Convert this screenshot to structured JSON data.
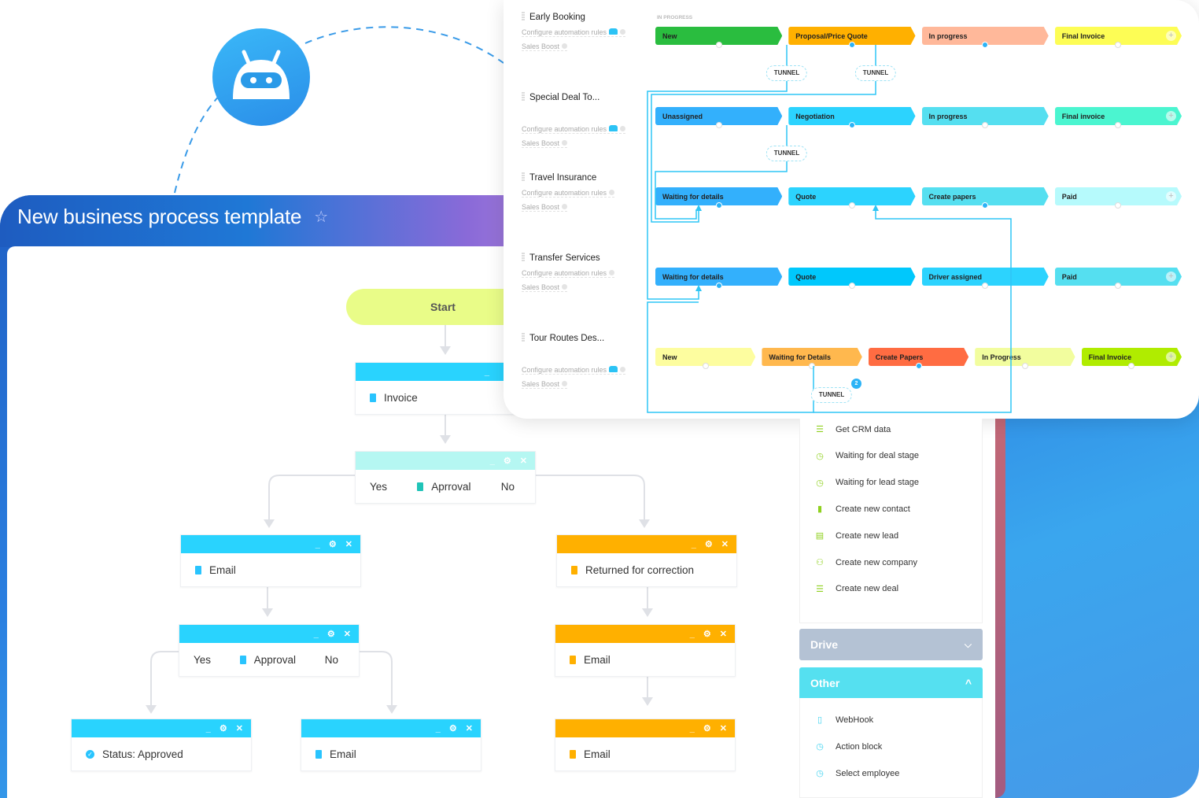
{
  "flow": {
    "title": "New business process template",
    "star_icon": "star-outline-icon",
    "start_label": "Start",
    "nodes": {
      "invoice": {
        "label": "Invoice",
        "color": "#29d3fe"
      },
      "approval1": {
        "yes": "Yes",
        "label": "Aprroval",
        "no": "No",
        "color": "#b5f7f2"
      },
      "email_left": {
        "label": "Email",
        "color": "#29d3fe"
      },
      "returned": {
        "label": "Returned for correction",
        "color": "#ffb000"
      },
      "approval2": {
        "yes": "Yes",
        "label": "Approval",
        "no": "No",
        "color": "#29d3fe"
      },
      "email_orange1": {
        "label": "Email",
        "color": "#ffb000"
      },
      "status": {
        "label": "Status: Approved",
        "color": "#29d3fe"
      },
      "email_mid": {
        "label": "Email",
        "color": "#29d3fe"
      },
      "email_orange2": {
        "label": "Email",
        "color": "#ffb000"
      }
    }
  },
  "pipelines": {
    "column_header": "IN PROGRESS",
    "automation_label": "Configure automation rules",
    "boost_label": "Sales Boost",
    "tunnel_label": "TUNNEL",
    "tunnel_badge": "2",
    "rows": [
      {
        "name": "Early Booking",
        "robot": true,
        "stages": [
          {
            "label": "New",
            "color": "#2abd3f",
            "active": false
          },
          {
            "label": "Proposal/Price Quote",
            "color": "#ffb000",
            "active": true
          },
          {
            "label": "In progress",
            "color": "#ffb89a",
            "active": true
          },
          {
            "label": "Final Invoice",
            "color": "#fdfd55",
            "active": false
          }
        ]
      },
      {
        "name": "Special Deal To...",
        "robot": true,
        "stages": [
          {
            "label": "Unassigned",
            "color": "#33b0fc",
            "active": false
          },
          {
            "label": "Negotiation",
            "color": "#2cd3fe",
            "active": true
          },
          {
            "label": "In progress",
            "color": "#55dff0",
            "active": false
          },
          {
            "label": "Final invoice",
            "color": "#4bf5d0",
            "active": false
          }
        ]
      },
      {
        "name": "Travel Insurance",
        "robot": false,
        "stages": [
          {
            "label": "Waiting for details",
            "color": "#33b0fc",
            "active": true
          },
          {
            "label": "Quote",
            "color": "#2cd3fe",
            "active": false
          },
          {
            "label": "Create papers",
            "color": "#55dff0",
            "active": true
          },
          {
            "label": "Paid",
            "color": "#b6fafc",
            "active": false
          }
        ]
      },
      {
        "name": "Transfer Services",
        "robot": false,
        "stages": [
          {
            "label": "Waiting for details",
            "color": "#33b0fc",
            "active": true
          },
          {
            "label": "Quote",
            "color": "#00c8fc",
            "active": false
          },
          {
            "label": "Driver assigned",
            "color": "#2cd3fe",
            "active": false
          },
          {
            "label": "Paid",
            "color": "#55dff0",
            "active": false
          }
        ]
      },
      {
        "name": "Tour Routes Des...",
        "robot": true,
        "stages": [
          {
            "label": "New",
            "color": "#fdfd9f",
            "active": false
          },
          {
            "label": "Waiting for Details",
            "color": "#ffb84e",
            "active": false
          },
          {
            "label": "Create Papers",
            "color": "#ff6c42",
            "active": true
          },
          {
            "label": "In Progress",
            "color": "#f2fd9e",
            "active": false
          },
          {
            "label": "Final Invoice",
            "color": "#b0ec00",
            "active": false
          }
        ]
      }
    ]
  },
  "sidebar": {
    "crm_items": [
      {
        "label": "Get CRM data",
        "icon": "funnel-icon"
      },
      {
        "label": "Waiting for deal stage",
        "icon": "clock-icon"
      },
      {
        "label": "Waiting for lead stage",
        "icon": "clock-icon"
      },
      {
        "label": "Create new contact",
        "icon": "contact-icon"
      },
      {
        "label": "Create new lead",
        "icon": "lead-icon"
      },
      {
        "label": "Create new company",
        "icon": "company-icon"
      },
      {
        "label": "Create new deal",
        "icon": "funnel-icon"
      }
    ],
    "drive": {
      "label": "Drive",
      "color": "#b4c2d4",
      "expanded": false
    },
    "other": {
      "label": "Other",
      "color": "#55e0f0",
      "expanded": true
    },
    "other_items": [
      {
        "label": "WebHook",
        "icon": "document-icon"
      },
      {
        "label": "Action block",
        "icon": "clock-icon"
      },
      {
        "label": "Select employee",
        "icon": "clock-icon"
      }
    ]
  }
}
